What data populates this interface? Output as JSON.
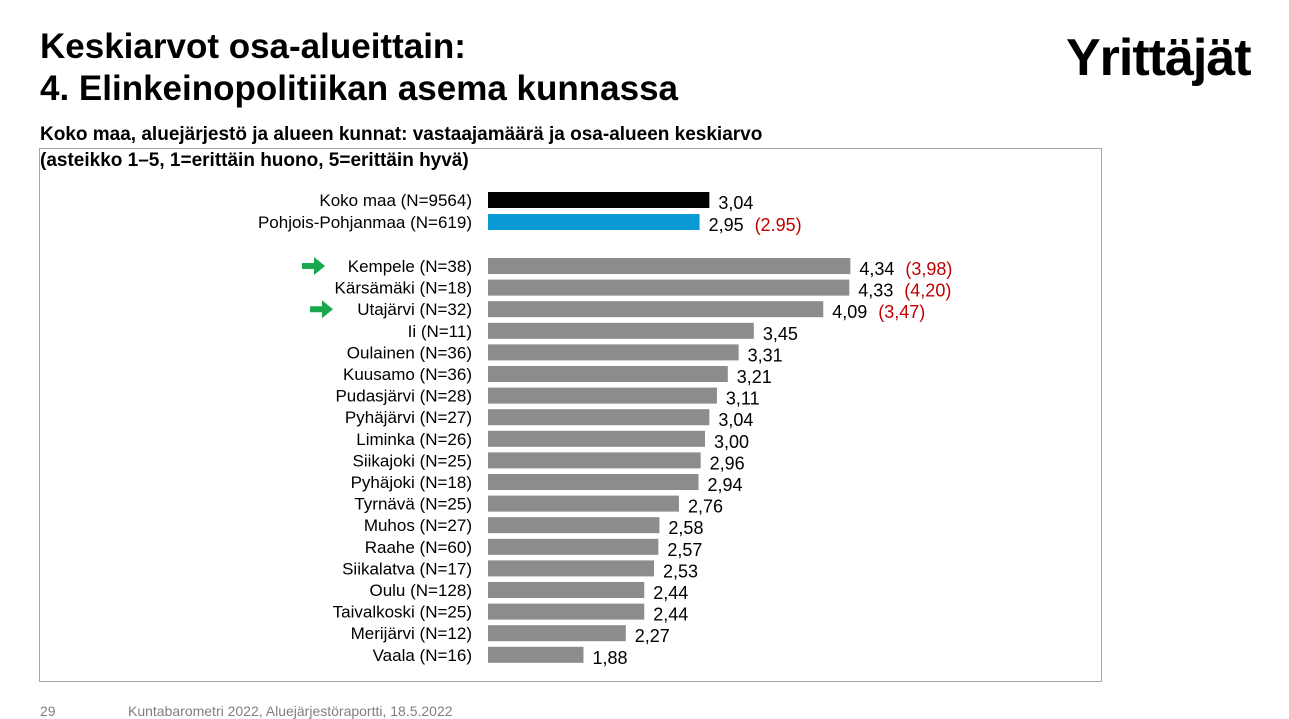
{
  "header": {
    "title_line1": "Keskiarvot osa-alueittain:",
    "title_line2": "4. Elinkeinopolitiikan asema kunnassa",
    "subtitle_line1": "Koko maa, aluejärjestö ja alueen kunnat: vastaajamäärä ja osa-alueen keskiarvo",
    "subtitle_line2": "(asteikko 1–5,  1=erittäin huono, 5=erittäin hyvä)"
  },
  "logo": {
    "text": "Yrittäjät"
  },
  "footer": {
    "page_number": "29",
    "text": "Kuntabarometri 2022, Aluejärjestöraportti, 18.5.2022"
  },
  "chart_data": {
    "type": "bar",
    "orientation": "horizontal",
    "title": "Keskiarvot osa-alueittain: 4. Elinkeinopolitiikan asema kunnassa",
    "xlim": [
      1,
      5
    ],
    "grid": false,
    "legend": "none",
    "colors": {
      "national": "#000000",
      "region": "#0a9bd6",
      "municipality": "#8c8c8c",
      "previous": "#c00000",
      "arrow": "#1aa84f"
    },
    "categories": [
      "Koko maa (N=9564)",
      "Pohjois-Pohjanmaa (N=619)",
      "Kempele (N=38)",
      "Kärsämäki (N=18)",
      "Utajärvi (N=32)",
      "Ii (N=11)",
      "Oulainen (N=36)",
      "Kuusamo (N=36)",
      "Pudasjärvi (N=28)",
      "Pyhäjärvi (N=27)",
      "Liminka (N=26)",
      "Siikajoki (N=25)",
      "Pyhäjoki (N=18)",
      "Tyrnävä (N=25)",
      "Muhos (N=27)",
      "Raahe (N=60)",
      "Siikalatva (N=17)",
      "Oulu (N=128)",
      "Taivalkoski (N=25)",
      "Merijärvi (N=12)",
      "Vaala (N=16)"
    ],
    "values": [
      3.04,
      2.95,
      4.34,
      4.33,
      4.09,
      3.45,
      3.31,
      3.21,
      3.11,
      3.04,
      3.0,
      2.96,
      2.94,
      2.76,
      2.58,
      2.57,
      2.53,
      2.44,
      2.44,
      2.27,
      1.88
    ],
    "value_labels": [
      "3,04",
      "2,95",
      "4,34",
      "4,33",
      "4,09",
      "3,45",
      "3,31",
      "3,21",
      "3,11",
      "3,04",
      "3,00",
      "2,96",
      "2,94",
      "2,76",
      "2,58",
      "2,57",
      "2,53",
      "2,44",
      "2,44",
      "2,27",
      "1,88"
    ],
    "previous_labels": [
      "",
      "(2.95)",
      "(3,98)",
      "(4,20)",
      "(3,47)",
      "",
      "",
      "",
      "",
      "",
      "",
      "",
      "",
      "",
      "",
      "",
      "",
      "",
      "",
      "",
      ""
    ],
    "groups": [
      "national",
      "region",
      "municipality",
      "municipality",
      "municipality",
      "municipality",
      "municipality",
      "municipality",
      "municipality",
      "municipality",
      "municipality",
      "municipality",
      "municipality",
      "municipality",
      "municipality",
      "municipality",
      "municipality",
      "municipality",
      "municipality",
      "municipality",
      "municipality"
    ],
    "highlighted": [
      false,
      false,
      true,
      false,
      true,
      false,
      false,
      false,
      false,
      false,
      false,
      false,
      false,
      false,
      false,
      false,
      false,
      false,
      false,
      false,
      false
    ]
  }
}
